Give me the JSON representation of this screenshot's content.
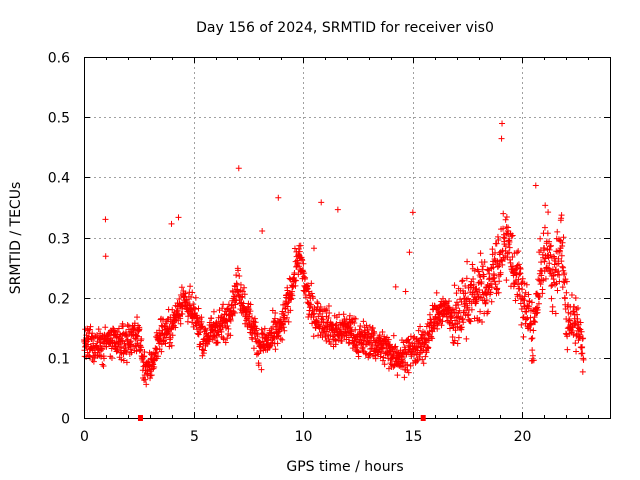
{
  "chart_data": {
    "type": "scatter",
    "title": "Day 156 of 2024, SRMTID for receiver vis0",
    "xlabel": "GPS time / hours",
    "ylabel": "SRMTID / TECUs",
    "xlim": [
      0,
      24
    ],
    "ylim": [
      0,
      0.6
    ],
    "x_ticks": [
      0,
      5,
      10,
      15,
      20
    ],
    "x_tick_labels": [
      "0",
      "5",
      "10",
      "15",
      "20"
    ],
    "y_ticks": [
      0,
      0.1,
      0.2,
      0.3,
      0.4,
      0.5,
      0.6
    ],
    "y_tick_labels": [
      "0",
      "0.1",
      "0.2",
      "0.3",
      "0.4",
      "0.5",
      "0.6"
    ],
    "grid": true,
    "marker": "plus",
    "point_color": "#ff0000",
    "gap_markers_x": [
      2.6,
      15.5
    ],
    "trend": {
      "x": [
        0,
        0.5,
        1,
        1.5,
        2,
        2.5,
        2.7,
        3,
        3.5,
        4,
        4.5,
        5,
        5.5,
        6,
        6.5,
        7,
        7.5,
        8,
        8.5,
        9,
        9.5,
        9.8,
        10.2,
        10.5,
        11,
        11.5,
        12,
        12.5,
        13,
        13.5,
        14,
        14.5,
        15,
        15.5,
        16,
        16.5,
        17,
        17.5,
        18,
        18.5,
        19,
        19.3,
        19.6,
        20,
        20.5,
        21,
        21.5,
        21.8,
        22,
        22.5,
        22.8
      ],
      "y": [
        0.12,
        0.12,
        0.13,
        0.12,
        0.13,
        0.14,
        0.09,
        0.08,
        0.14,
        0.15,
        0.2,
        0.17,
        0.13,
        0.15,
        0.16,
        0.22,
        0.17,
        0.12,
        0.13,
        0.15,
        0.22,
        0.27,
        0.2,
        0.17,
        0.16,
        0.14,
        0.15,
        0.13,
        0.13,
        0.12,
        0.11,
        0.1,
        0.11,
        0.12,
        0.17,
        0.18,
        0.16,
        0.2,
        0.21,
        0.22,
        0.27,
        0.3,
        0.25,
        0.2,
        0.14,
        0.28,
        0.23,
        0.3,
        0.16,
        0.17,
        0.1
      ]
    }
  }
}
